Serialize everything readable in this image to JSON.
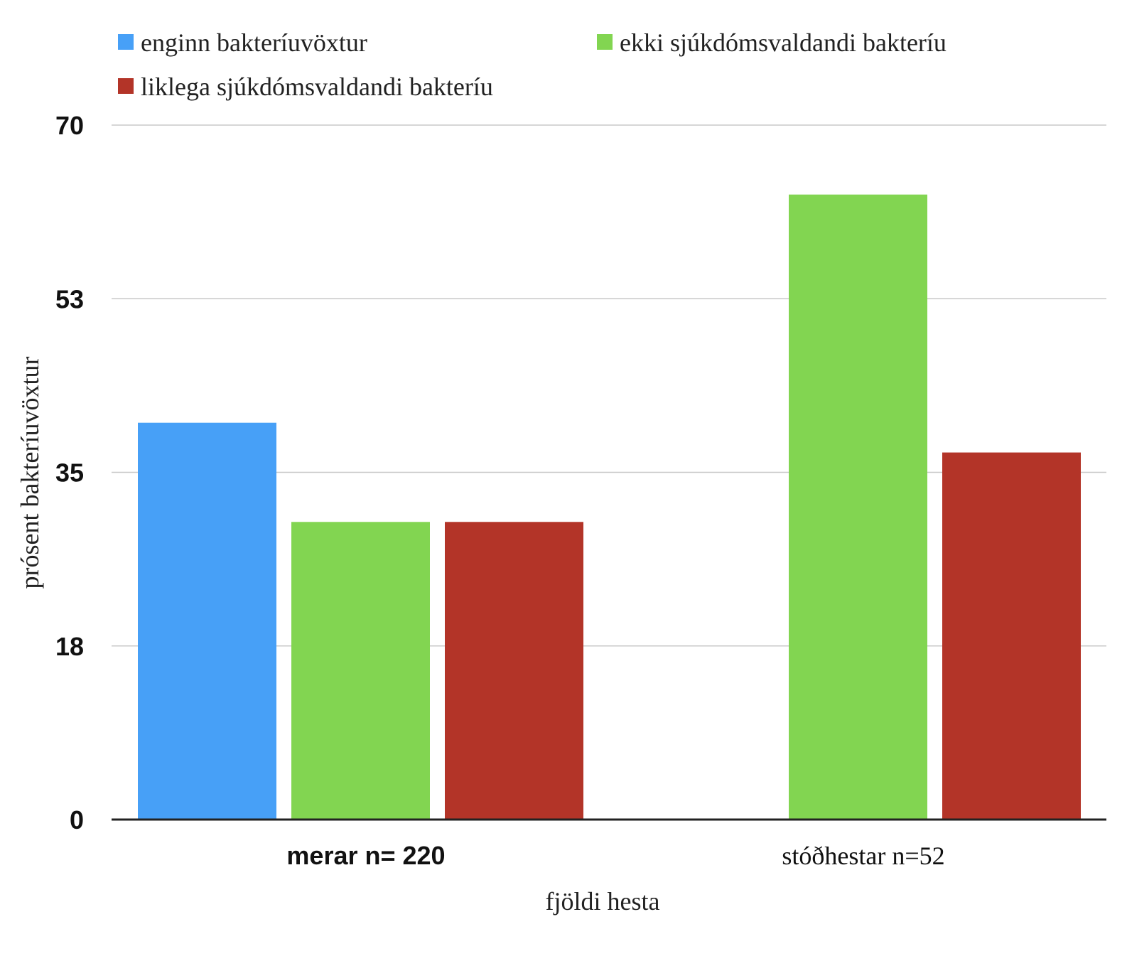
{
  "chart_data": {
    "type": "bar",
    "title": "",
    "xlabel": "fjöldi hesta",
    "ylabel": "prósent bakteríuvöxtur",
    "categories": [
      "merar n= 220",
      "stóðhestar n=52"
    ],
    "series": [
      {
        "name": "enginn bakteríuvöxtur",
        "color": "#47a0f7",
        "values": [
          40,
          0
        ]
      },
      {
        "name": "ekki sjúkdómsvaldandi bakteríu",
        "color": "#82d551",
        "values": [
          30,
          63
        ]
      },
      {
        "name": "liklega sjúkdómsvaldandi bakteríu",
        "color": "#b33428",
        "values": [
          30,
          37
        ]
      }
    ],
    "ylim": [
      0,
      70
    ],
    "yticks": [
      "0",
      "18",
      "35",
      "53",
      "70"
    ],
    "ytick_values": [
      0,
      17.5,
      35,
      52.5,
      70
    ],
    "grid": true,
    "legend_position": "top-left"
  }
}
